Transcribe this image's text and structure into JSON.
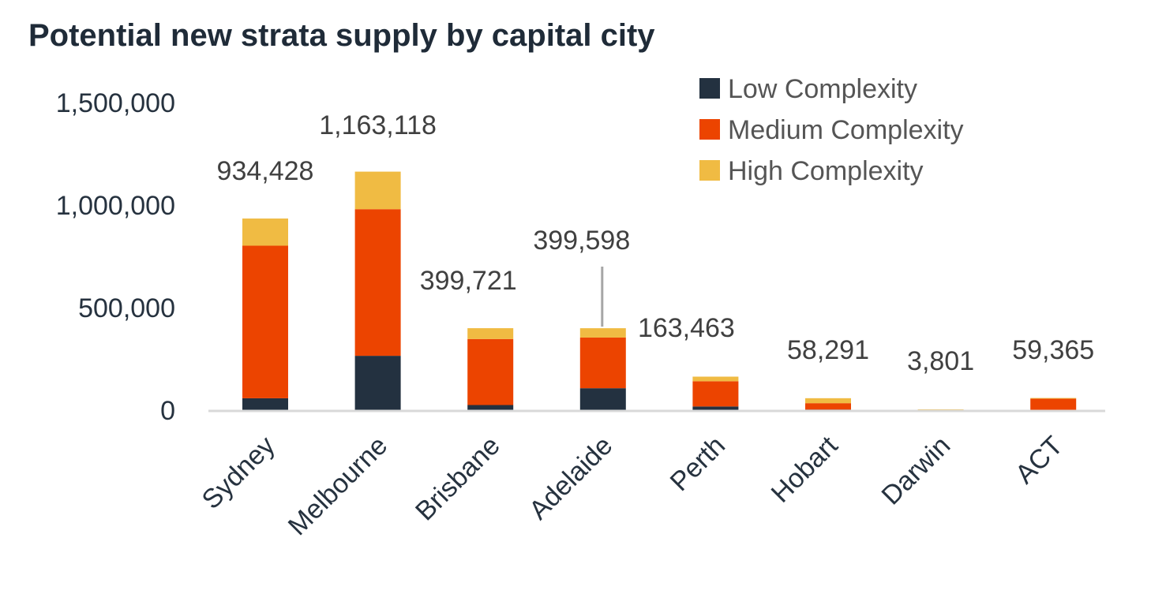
{
  "chart_data": {
    "type": "bar",
    "stacked": true,
    "title": "Potential new strata supply by capital city",
    "xlabel": "",
    "ylabel": "",
    "ylim": [
      0,
      1500000
    ],
    "yticks": [
      0,
      500000,
      1000000,
      1500000
    ],
    "ytick_labels": [
      "0",
      "500,000",
      "1,000,000",
      "1,500,000"
    ],
    "grid": false,
    "legend_position": "top-right",
    "categories": [
      "Sydney",
      "Melbourne",
      "Brisbane",
      "Adelaide",
      "Perth",
      "Hobart",
      "Darwin",
      "ACT"
    ],
    "series": [
      {
        "name": "Low Complexity",
        "color": "#233140",
        "values": [
          58000,
          265000,
          25000,
          107000,
          18000,
          3000,
          0,
          0
        ]
      },
      {
        "name": "Medium Complexity",
        "color": "#ec4400",
        "values": [
          744000,
          715000,
          322000,
          247000,
          123000,
          31000,
          0,
          56000
        ]
      },
      {
        "name": "High Complexity",
        "color": "#f0bb43",
        "values": [
          132428,
          183118,
          52721,
          45598,
          22463,
          24291,
          3801,
          3365
        ]
      }
    ],
    "totals": [
      934428,
      1163118,
      399721,
      399598,
      163463,
      58291,
      3801,
      59365
    ],
    "total_labels": [
      "934,428",
      "1,163,118",
      "399,721",
      "399,598",
      "163,463",
      "58,291",
      "3,801",
      "59,365"
    ]
  }
}
